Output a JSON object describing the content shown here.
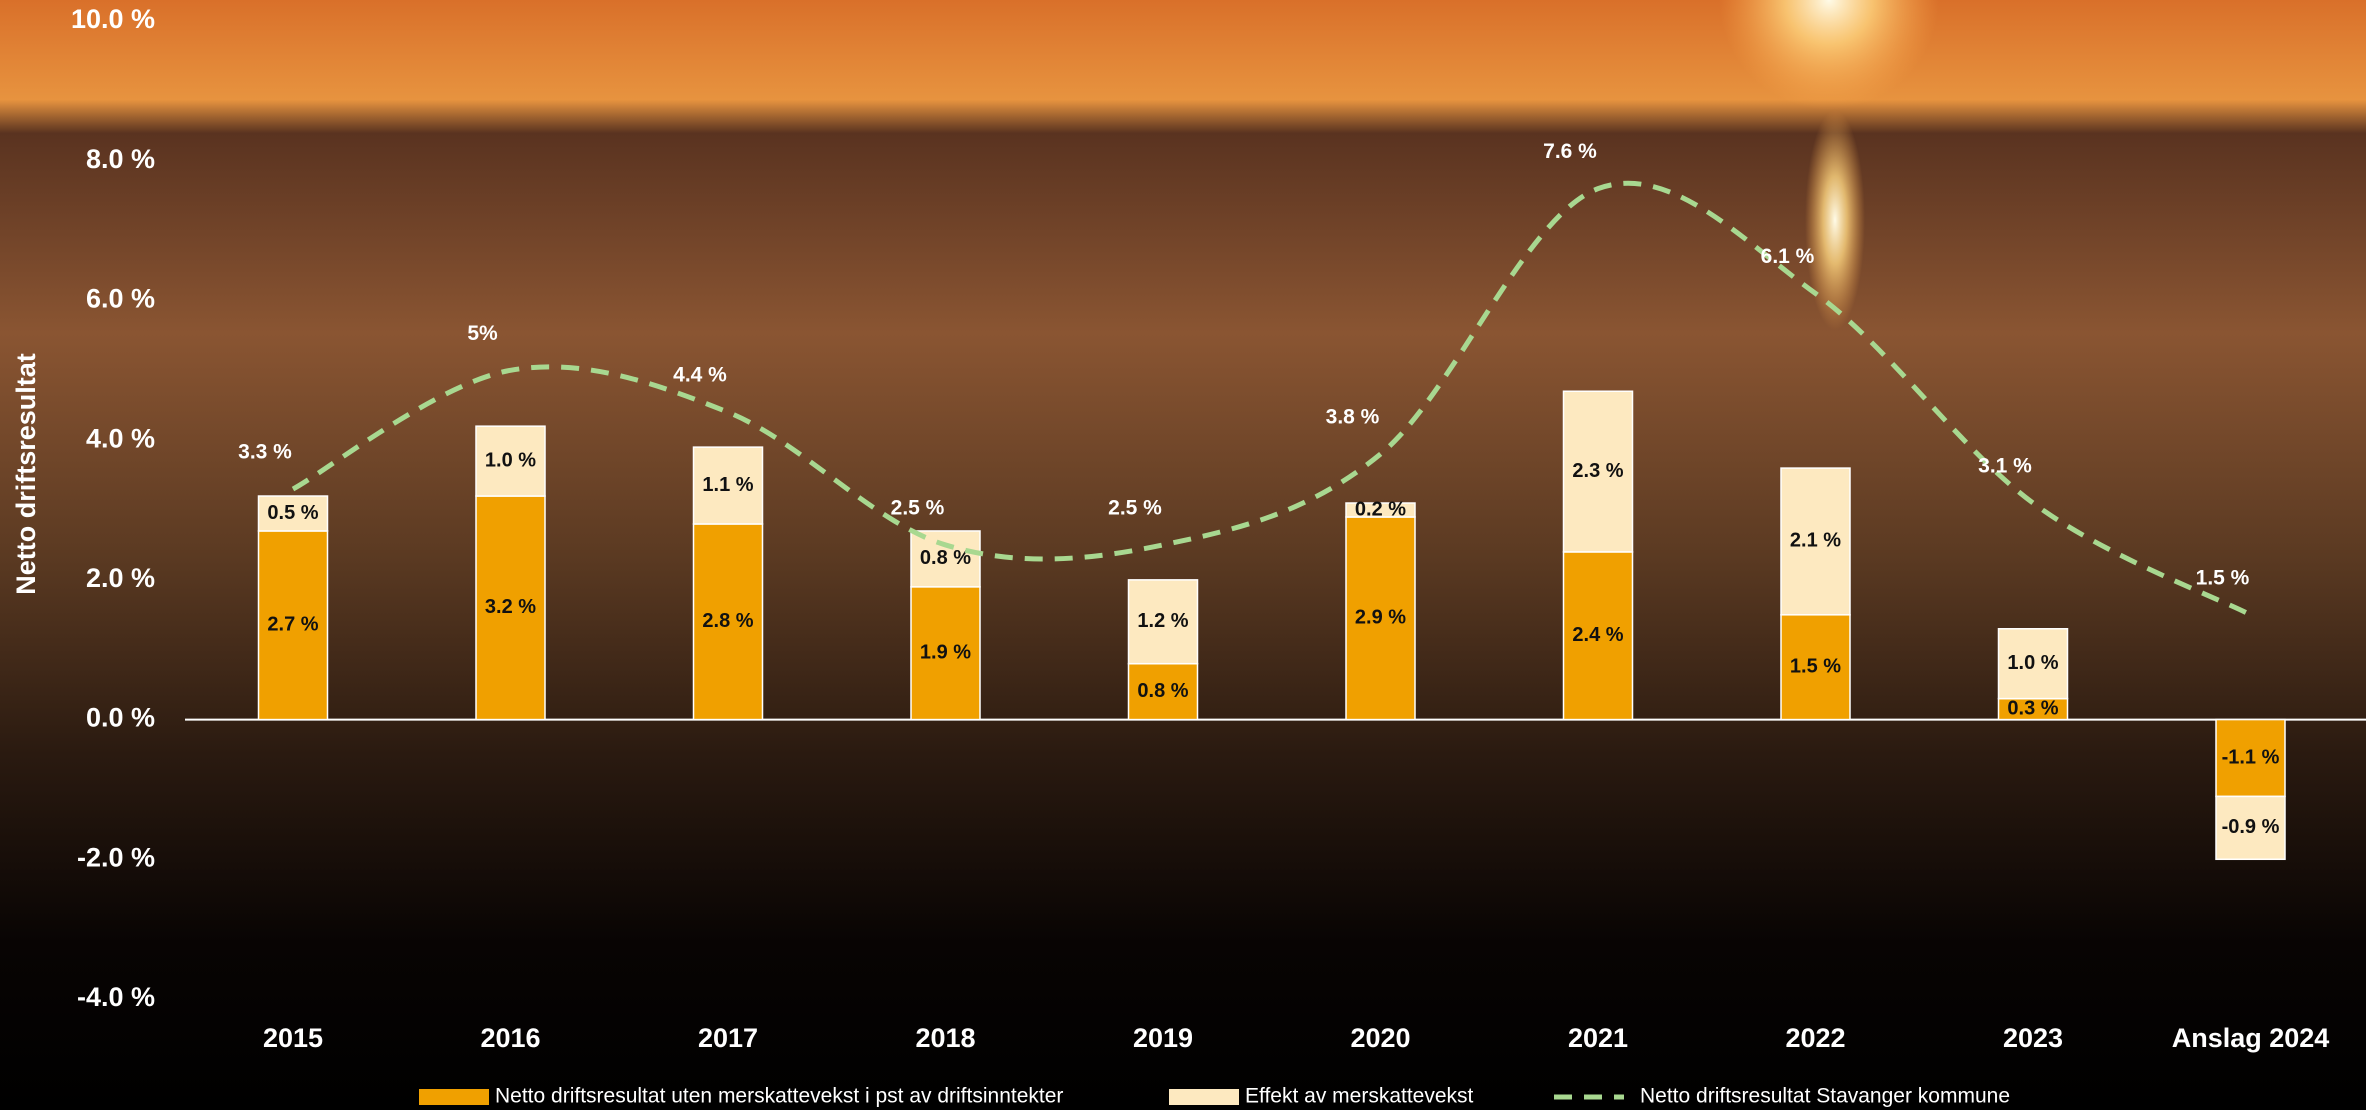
{
  "chart_data": {
    "type": "bar-line",
    "y_label": "Netto driftsresultat",
    "categories": [
      "2015",
      "2016",
      "2017",
      "2018",
      "2019",
      "2020",
      "2021",
      "2022",
      "2023",
      "Anslag 2024"
    ],
    "series": [
      {
        "name": "Netto driftsresultat uten merskattevekst i pst av driftsinntekter",
        "type": "bar",
        "color": "#f0a000",
        "values": [
          2.7,
          3.2,
          2.8,
          1.9,
          0.8,
          2.9,
          2.4,
          1.5,
          0.3,
          -1.1
        ],
        "value_labels": [
          "2.7 %",
          "3.2 %",
          "2.8 %",
          "1.9 %",
          "0.8 %",
          "2.9 %",
          "2.4 %",
          "1.5 %",
          "0.3 %",
          "-1.1 %"
        ]
      },
      {
        "name": "Effekt av merskattevekst",
        "type": "bar",
        "color": "#fde9c0",
        "values": [
          0.5,
          1.0,
          1.1,
          0.8,
          1.2,
          0.2,
          2.3,
          2.1,
          1.0,
          -0.9
        ],
        "value_labels": [
          "0.5 %",
          "1.0 %",
          "1.1 %",
          "0.8 %",
          "1.2 %",
          "0.2 %",
          "2.3 %",
          "2.1 %",
          "1.0 %",
          "-0.9 %"
        ]
      },
      {
        "name": "Netto driftsresultat Stavanger kommune",
        "type": "line",
        "color": "#a8d890",
        "values": [
          3.3,
          5,
          4.4,
          2.5,
          2.5,
          3.8,
          7.6,
          6.1,
          3.1,
          1.5
        ],
        "value_labels": [
          "3.3 %",
          "5%",
          "4.4 %",
          "2.5 %",
          "2.5 %",
          "3.8 %",
          "7.6 %",
          "6.1 %",
          "3.1 %",
          "1.5 %"
        ]
      }
    ],
    "ylim": [
      -4,
      10
    ],
    "yticks": [
      {
        "value": 10,
        "label": "10.0 %"
      },
      {
        "value": 8,
        "label": "8.0 %"
      },
      {
        "value": 6,
        "label": "6.0 %"
      },
      {
        "value": 4,
        "label": "4.0 %"
      },
      {
        "value": 2,
        "label": "2.0 %"
      },
      {
        "value": 0,
        "label": "0.0 %"
      },
      {
        "value": -2,
        "label": "-2.0 %"
      },
      {
        "value": -4,
        "label": "-4.0 %"
      }
    ],
    "grid": false
  }
}
